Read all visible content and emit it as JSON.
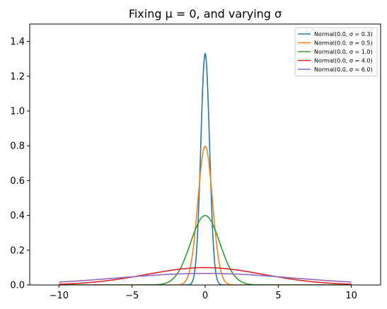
{
  "chart_data": {
    "type": "line",
    "title": "Fixing μ = 0, and varying σ",
    "xlabel": "",
    "ylabel": "",
    "xlim": [
      -12,
      12
    ],
    "ylim": [
      0,
      1.5
    ],
    "x_range": [
      -10,
      10
    ],
    "xticks": [
      -10,
      -5,
      0,
      5,
      10
    ],
    "xtick_labels": [
      "−10",
      "−5",
      "0",
      "5",
      "10"
    ],
    "yticks": [
      0,
      0.2,
      0.4,
      0.6,
      0.8,
      1.0,
      1.2,
      1.4
    ],
    "ytick_labels": [
      "0.0",
      "0.2",
      "0.4",
      "0.6",
      "0.8",
      "1.0",
      "1.2",
      "1.4"
    ],
    "grid": false,
    "legend_position": "top-right",
    "series": [
      {
        "name": "Normal(0.0, σ = 0.3)",
        "mu": 0.0,
        "sigma": 0.3,
        "color": "#1f77b4",
        "peak": 1.33
      },
      {
        "name": "Normal(0.0, σ = 0.5)",
        "mu": 0.0,
        "sigma": 0.5,
        "color": "#ff7f0e",
        "peak": 0.8
      },
      {
        "name": "Normal(0.0, σ = 1.0)",
        "mu": 0.0,
        "sigma": 1.0,
        "color": "#2ca02c",
        "peak": 0.4
      },
      {
        "name": "Normal(0.0, σ = 4.0)",
        "mu": 0.0,
        "sigma": 4.0,
        "color": "#d62728",
        "peak": 0.1
      },
      {
        "name": "Normal(0.0, σ = 6.0)",
        "mu": 0.0,
        "sigma": 6.0,
        "color": "#9467bd",
        "peak": 0.066
      }
    ]
  }
}
